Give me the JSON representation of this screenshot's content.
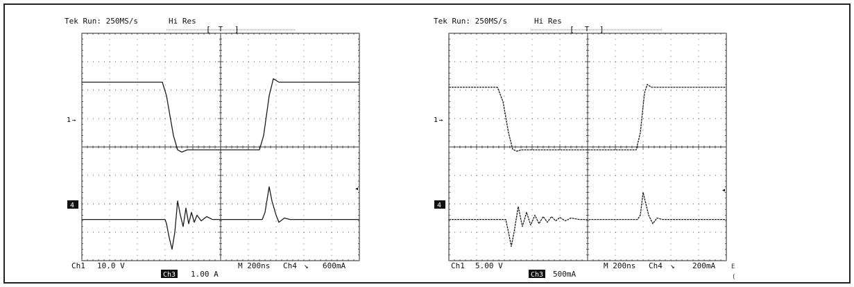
{
  "scopes": [
    {
      "header": {
        "status": "Tek Run: 250MS/s",
        "mode": "Hi Res",
        "trigger_mark": "T"
      },
      "footer": {
        "ch1": "Ch1",
        "ch1_scale": "10.0 V",
        "ch3_badge": "Ch3",
        "ch3_scale": "1.00 A",
        "timebase": "M 200ns",
        "trig_src": "Ch4",
        "trig_slope": "↘",
        "trig_level": "600mA"
      },
      "markers": {
        "ch1": "1",
        "ch4": "4"
      },
      "dotted": false
    },
    {
      "header": {
        "status": "Tek Run: 250MS/s",
        "mode": "Hi Res",
        "trigger_mark": "T"
      },
      "footer": {
        "ch1": "Ch1",
        "ch1_scale": "5.00 V",
        "ch3_badge": "Ch3",
        "ch3_scale": "500mA",
        "timebase": "M 200ns",
        "trig_src": "Ch4",
        "trig_slope": "↘",
        "trig_level": "200mA"
      },
      "markers": {
        "ch1": "1",
        "ch4": "4"
      },
      "dotted": true
    }
  ],
  "chart_data": [
    {
      "type": "line",
      "grid": true,
      "xlim": [
        0,
        10
      ],
      "ylim": [
        0,
        8
      ],
      "series": [
        {
          "x": [
            0,
            2.9,
            3.05,
            3.3,
            3.45,
            3.6,
            3.8,
            6.4,
            6.55,
            6.75,
            6.9,
            7.1,
            10
          ],
          "values": [
            6.28,
            6.28,
            5.8,
            4.4,
            3.9,
            3.82,
            3.9,
            3.9,
            4.4,
            5.8,
            6.4,
            6.28,
            6.28
          ]
        },
        {
          "x": [
            0,
            3.0,
            3.05,
            3.15,
            3.25,
            3.35,
            3.45,
            3.55,
            3.65,
            3.75,
            3.85,
            3.95,
            4.05,
            4.15,
            4.3,
            4.5,
            4.7,
            5,
            6.5,
            6.6,
            6.75,
            6.85,
            7.0,
            7.1,
            7.3,
            7.5,
            10
          ],
          "values": [
            1.45,
            1.45,
            1.3,
            0.8,
            0.4,
            1.0,
            2.1,
            1.6,
            1.2,
            1.85,
            1.3,
            1.7,
            1.35,
            1.6,
            1.4,
            1.55,
            1.45,
            1.45,
            1.45,
            1.7,
            2.6,
            2.1,
            1.6,
            1.35,
            1.5,
            1.45,
            1.45
          ]
        }
      ]
    },
    {
      "type": "line",
      "grid": true,
      "xlim": [
        0,
        10
      ],
      "ylim": [
        0,
        8
      ],
      "series": [
        {
          "x": [
            0,
            1.75,
            1.95,
            2.15,
            2.3,
            2.45,
            2.6,
            6.75,
            6.9,
            7.05,
            7.15,
            7.3,
            10
          ],
          "values": [
            6.1,
            6.1,
            5.6,
            4.5,
            3.92,
            3.85,
            3.9,
            3.9,
            4.5,
            5.9,
            6.2,
            6.1,
            6.1
          ]
        },
        {
          "x": [
            0,
            2.05,
            2.15,
            2.25,
            2.35,
            2.5,
            2.65,
            2.8,
            2.95,
            3.1,
            3.25,
            3.4,
            3.55,
            3.7,
            3.85,
            4.0,
            4.2,
            4.4,
            4.7,
            5,
            6.8,
            6.9,
            7.0,
            7.1,
            7.2,
            7.35,
            7.5,
            7.7,
            10
          ],
          "values": [
            1.45,
            1.45,
            1.0,
            0.5,
            1.0,
            1.9,
            1.2,
            1.7,
            1.25,
            1.6,
            1.3,
            1.55,
            1.35,
            1.55,
            1.4,
            1.52,
            1.4,
            1.5,
            1.45,
            1.45,
            1.45,
            1.6,
            2.4,
            2.0,
            1.6,
            1.3,
            1.5,
            1.45,
            1.45
          ]
        }
      ]
    }
  ]
}
